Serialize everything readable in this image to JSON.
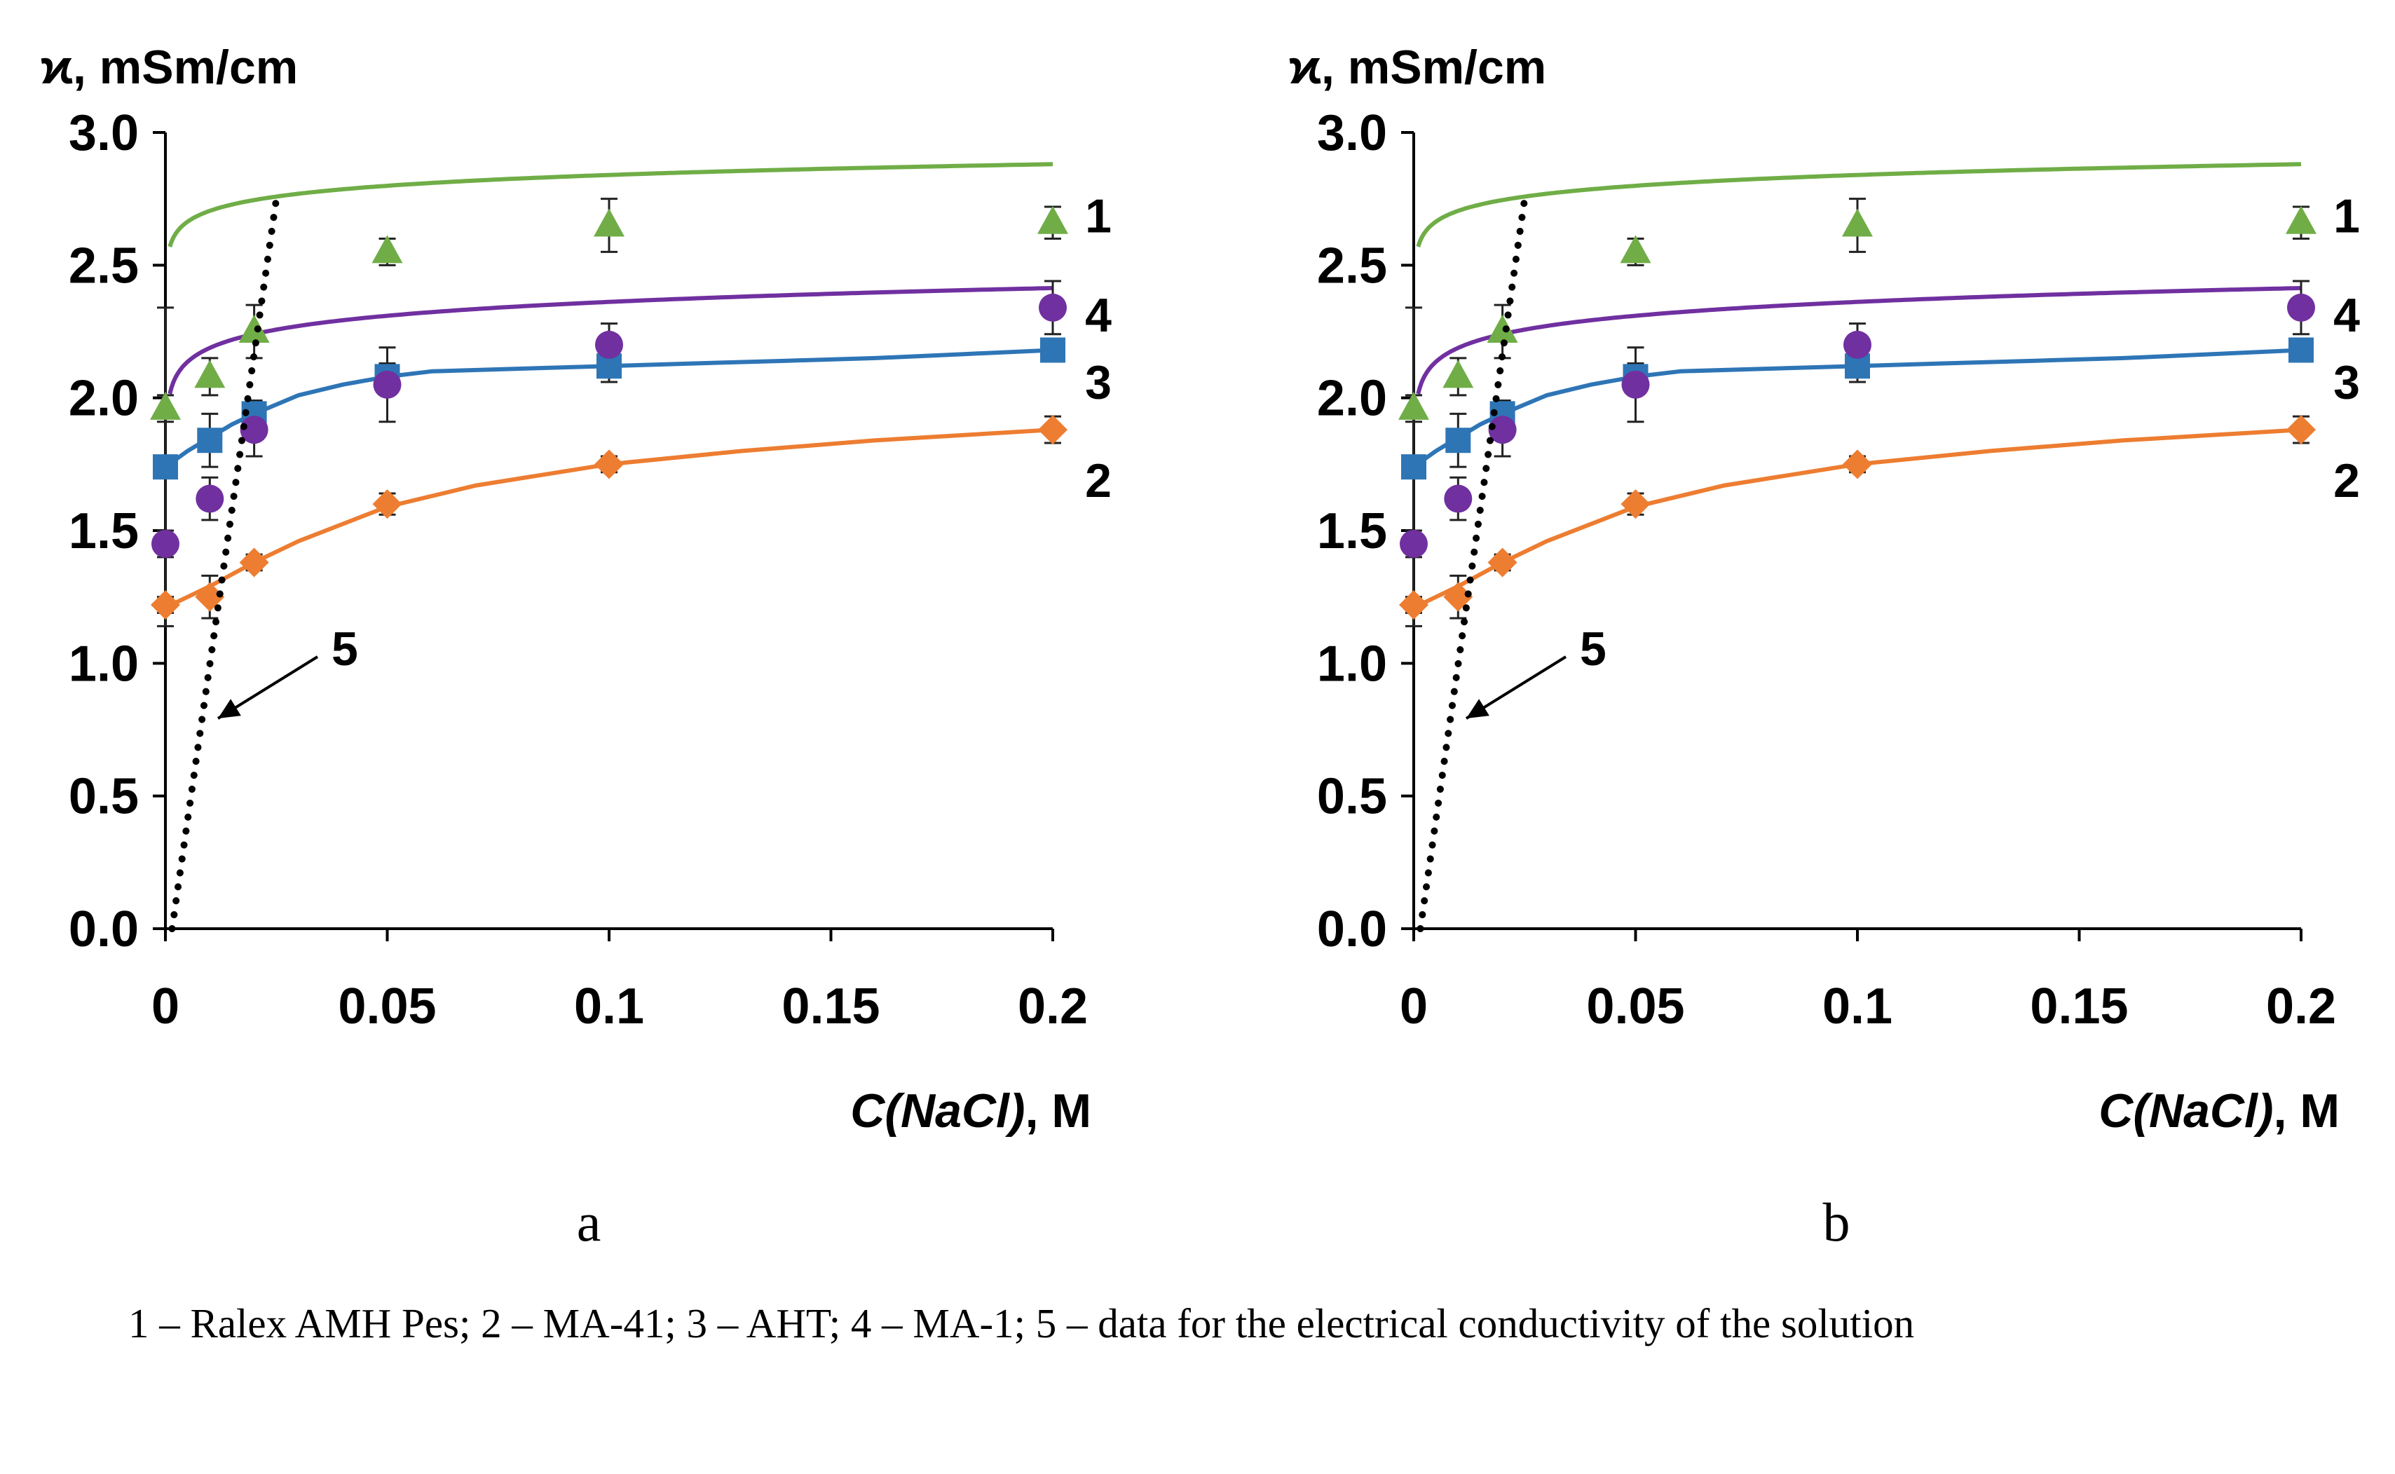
{
  "figure": {
    "caption": "1 – Ralex AMH Pes; 2 – MA-41; 3 – AHT; 4 – MA-1; 5 – data for the electrical conductivity of the solution"
  },
  "chart_data": [
    {
      "type": "scatter",
      "panel_label": "a",
      "title": "",
      "ylabel": "ϰ, mSm/cm",
      "xlabel_var": "C(NaCl)",
      "xlabel_unit": ", M",
      "xlim": [
        0,
        0.2
      ],
      "ylim": [
        0,
        3.0
      ],
      "xticks": [
        0,
        0.05,
        0.1,
        0.15,
        0.2
      ],
      "xtick_labels": [
        "0",
        "0.05",
        "0.1",
        "0.15",
        "0.2"
      ],
      "yticks": [
        0,
        0.5,
        1.0,
        1.5,
        2.0,
        2.5,
        3.0
      ],
      "ytick_labels": [
        "0.0",
        "0.5",
        "1.0",
        "1.5",
        "2.0",
        "2.5",
        "3.0"
      ],
      "grid": false,
      "series": [
        {
          "name": "1",
          "label": "1",
          "marker": "triangle",
          "color": "#70ad47",
          "x": [
            0,
            0.01,
            0.02,
            0.05,
            0.1,
            0.2
          ],
          "y": [
            1.96,
            2.08,
            2.25,
            2.55,
            2.65,
            2.66
          ],
          "err": [
            0.05,
            0.07,
            0.1,
            0.05,
            0.1,
            0.06
          ],
          "fit": {
            "a": 2.975,
            "b": 0.0587
          }
        },
        {
          "name": "2",
          "label": "2",
          "marker": "diamond",
          "color": "#ed7d31",
          "x": [
            0,
            0.01,
            0.02,
            0.05,
            0.1,
            0.2
          ],
          "y": [
            1.22,
            1.25,
            1.38,
            1.6,
            1.75,
            1.88
          ],
          "err": [
            0.03,
            0.08,
            0.03,
            0.04,
            0.03,
            0.05
          ],
          "fit": {
            "a": 1.206,
            "b": 0.127
          }
        },
        {
          "name": "3",
          "label": "3",
          "marker": "square",
          "color": "#2e75b6",
          "x": [
            0,
            0.01,
            0.02,
            0.05,
            0.1,
            0.2
          ],
          "y": [
            1.74,
            1.84,
            1.94,
            2.08,
            2.12,
            2.18
          ],
          "err": [
            0.6,
            0.1,
            0.05,
            0.05,
            0.06,
            0.03
          ],
          "fit": {
            "a": 0.0,
            "b": 0.0
          }
        },
        {
          "name": "4",
          "label": "4",
          "marker": "circle",
          "color": "#7030a0",
          "x": [
            0,
            0.01,
            0.02,
            0.05,
            0.1,
            0.2
          ],
          "y": [
            1.45,
            1.62,
            1.88,
            2.05,
            2.2,
            2.34
          ],
          "err": [
            0.05,
            0.08,
            0.1,
            0.14,
            0.08,
            0.1
          ],
          "fit": {
            "a": 2.535,
            "b": 0.0753
          }
        }
      ],
      "solution_line": {
        "name": "5",
        "label": "5",
        "style": "dotted",
        "color": "#000000",
        "x": [
          0.0015,
          0.025
        ],
        "y": [
          0.0,
          2.75
        ]
      }
    },
    {
      "type": "scatter",
      "panel_label": "b",
      "title": "",
      "ylabel": "ϰ, mSm/cm",
      "xlabel_var": "C(NaCl)",
      "xlabel_unit": ", M",
      "xlim": [
        0,
        0.2
      ],
      "ylim": [
        0,
        3.0
      ],
      "xticks": [
        0,
        0.05,
        0.1,
        0.15,
        0.2
      ],
      "xtick_labels": [
        "0",
        "0.05",
        "0.1",
        "0.15",
        "0.2"
      ],
      "yticks": [
        0,
        0.5,
        1.0,
        1.5,
        2.0,
        2.5,
        3.0
      ],
      "ytick_labels": [
        "0.0",
        "0.5",
        "1.0",
        "1.5",
        "2.0",
        "2.5",
        "3.0"
      ],
      "grid": false,
      "series": [
        {
          "name": "1",
          "label": "1",
          "marker": "triangle",
          "color": "#70ad47",
          "x": [
            0,
            0.01,
            0.02,
            0.05,
            0.1,
            0.2
          ],
          "y": [
            1.96,
            2.08,
            2.25,
            2.55,
            2.65,
            2.66
          ],
          "err": [
            0.05,
            0.07,
            0.1,
            0.05,
            0.1,
            0.06
          ],
          "fit": {
            "a": 2.975,
            "b": 0.0587
          }
        },
        {
          "name": "2",
          "label": "2",
          "marker": "diamond",
          "color": "#ed7d31",
          "x": [
            0,
            0.01,
            0.02,
            0.05,
            0.1,
            0.2
          ],
          "y": [
            1.22,
            1.25,
            1.38,
            1.6,
            1.75,
            1.88
          ],
          "err": [
            0.03,
            0.08,
            0.03,
            0.04,
            0.03,
            0.05
          ],
          "fit": {
            "a": 1.206,
            "b": 0.127
          }
        },
        {
          "name": "3",
          "label": "3",
          "marker": "square",
          "color": "#2e75b6",
          "x": [
            0,
            0.01,
            0.02,
            0.05,
            0.1,
            0.2
          ],
          "y": [
            1.74,
            1.84,
            1.94,
            2.08,
            2.12,
            2.18
          ],
          "err": [
            0.6,
            0.1,
            0.05,
            0.05,
            0.06,
            0.03
          ],
          "fit": {
            "a": 0.0,
            "b": 0.0
          }
        },
        {
          "name": "4",
          "label": "4",
          "marker": "circle",
          "color": "#7030a0",
          "x": [
            0,
            0.01,
            0.02,
            0.05,
            0.1,
            0.2
          ],
          "y": [
            1.45,
            1.62,
            1.88,
            2.05,
            2.2,
            2.34
          ],
          "err": [
            0.05,
            0.08,
            0.1,
            0.14,
            0.08,
            0.1
          ],
          "fit": {
            "a": 2.535,
            "b": 0.0753
          }
        }
      ],
      "solution_line": {
        "name": "5",
        "label": "5",
        "style": "dotted",
        "color": "#000000",
        "x": [
          0.0015,
          0.025
        ],
        "y": [
          0.0,
          2.75
        ]
      }
    }
  ]
}
